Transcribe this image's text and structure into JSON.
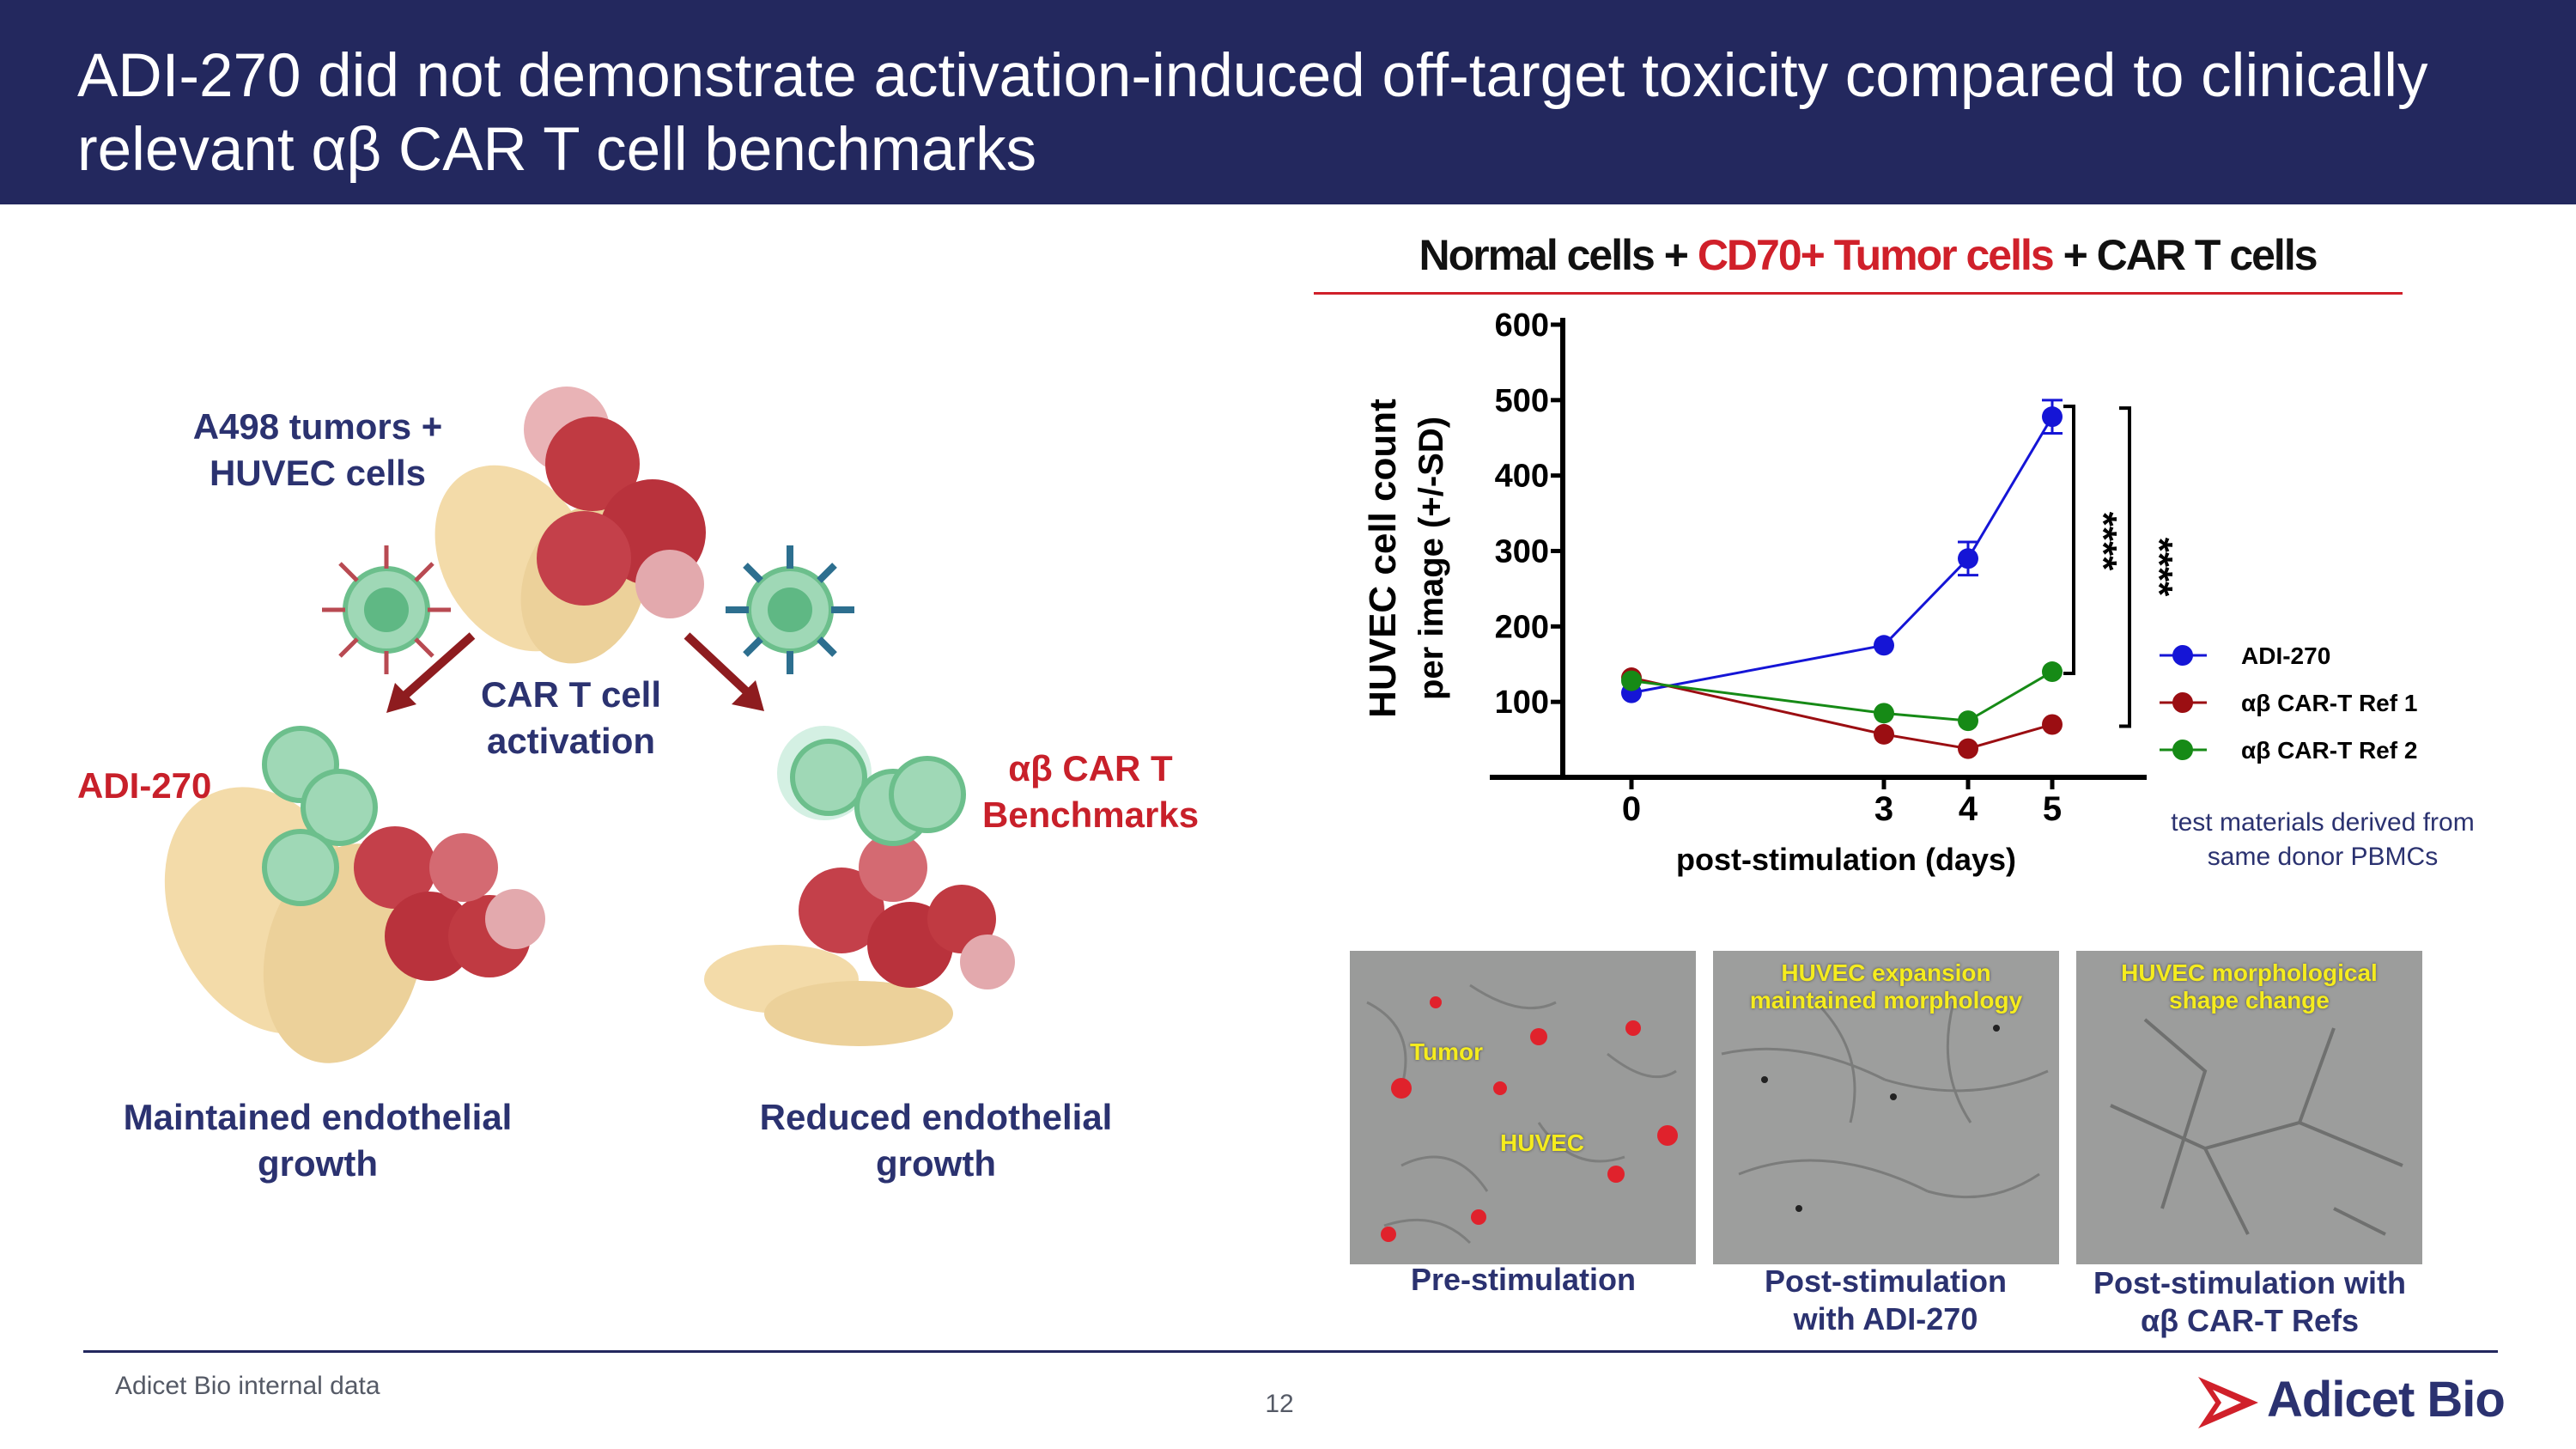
{
  "header": {
    "title_line1": "ADI-270 did not demonstrate activation-induced off-target toxicity compared to clinically",
    "title_line2": "relevant αβ CAR T cell benchmarks"
  },
  "diagram": {
    "tumor_label_1": "A498 tumors +",
    "tumor_label_2": "HUVEC cells",
    "activation_1": "CAR T cell",
    "activation_2": "activation",
    "adi_label": "ADI-270",
    "bench_1": "αβ CAR T",
    "bench_2": "Benchmarks",
    "left_result_1": "Maintained endothelial",
    "left_result_2": "growth",
    "right_result_1": "Reduced endothelial",
    "right_result_2": "growth"
  },
  "chart_title": {
    "part1": "Normal cells + ",
    "part2": "CD70+ Tumor cells",
    "part3": " + CAR T cells"
  },
  "chart_data": {
    "type": "line",
    "x": [
      0,
      3,
      4,
      5
    ],
    "xticks": [
      "0",
      "3",
      "4",
      "5"
    ],
    "xlabel": "post-stimulation (days)",
    "ylabel_1": "HUVEC cell count",
    "ylabel_2": "per image (+/-SD)",
    "ylim": [
      0,
      600
    ],
    "yticks": [
      "100",
      "200",
      "300",
      "400",
      "500",
      "600"
    ],
    "series": [
      {
        "name": "ADI-270",
        "color": "#1515d6",
        "values": [
          112,
          175,
          290,
          478
        ],
        "errors": [
          0,
          0,
          22,
          22
        ]
      },
      {
        "name": "αβ CAR-T Ref 1",
        "color": "#9b0e12",
        "values": [
          132,
          57,
          38,
          70
        ],
        "errors": [
          0,
          0,
          0,
          0
        ]
      },
      {
        "name": "αβ CAR-T Ref 2",
        "color": "#168a16",
        "values": [
          128,
          85,
          75,
          140
        ],
        "errors": [
          0,
          0,
          0,
          0
        ]
      }
    ],
    "significance": [
      "****",
      "****"
    ],
    "legend_position": "right"
  },
  "note": "test materials derived from same donor PBMCs",
  "micrographs": {
    "pre_caption": "Pre-stimulation",
    "pre_tumor": "Tumor",
    "pre_huvec": "HUVEC",
    "adi_note_1": "HUVEC expansion",
    "adi_note_2": "maintained morphology",
    "adi_caption_1": "Post-stimulation",
    "adi_caption_2": "with ADI-270",
    "ref_note_1": "HUVEC morphological",
    "ref_note_2": "shape change",
    "ref_caption_1": "Post-stimulation  with",
    "ref_caption_2": "αβ CAR-T Refs"
  },
  "footer": {
    "source": "Adicet Bio internal data",
    "page": "12",
    "logo": "Adicet Bio"
  }
}
